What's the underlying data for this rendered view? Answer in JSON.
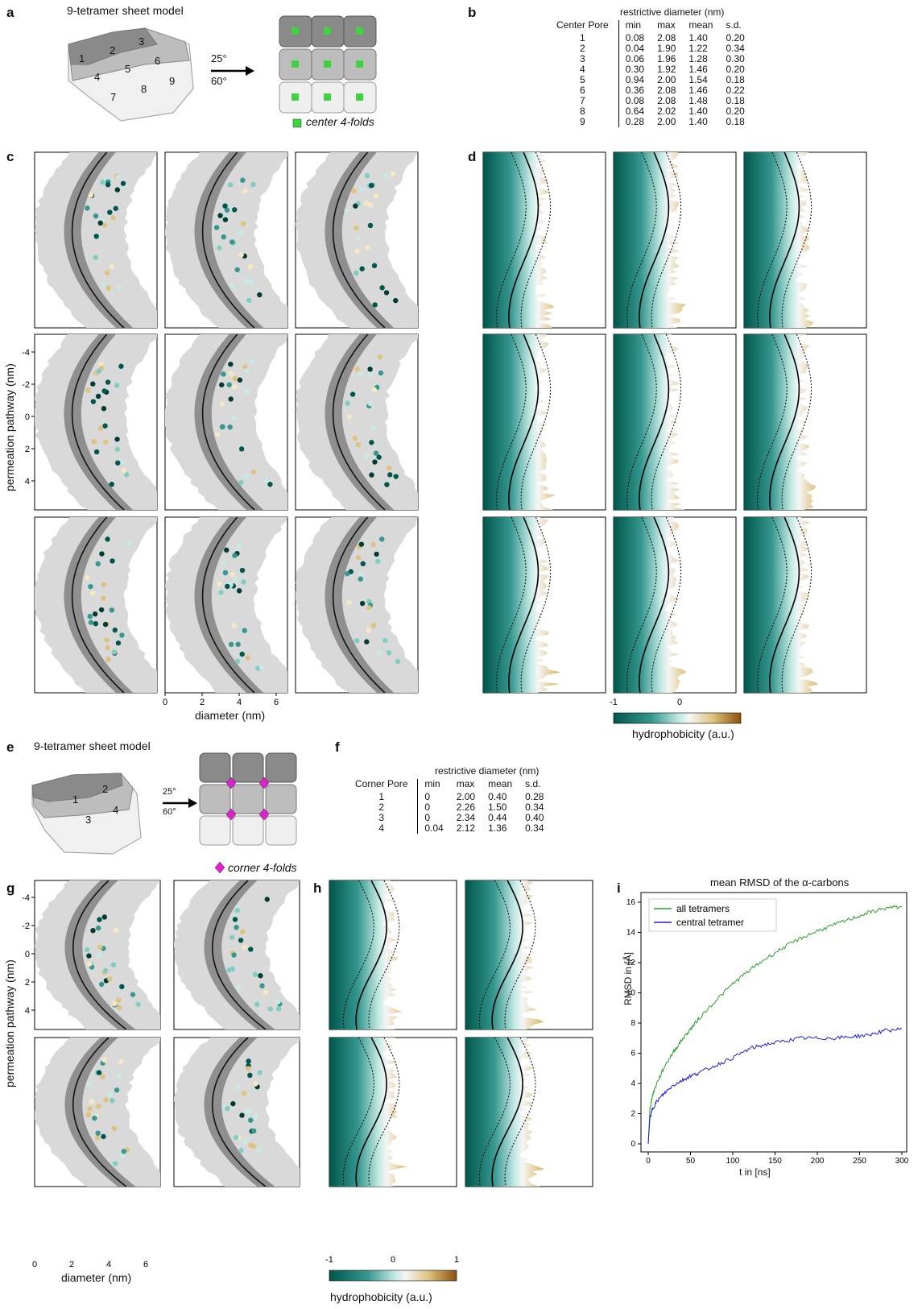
{
  "panels": {
    "a": "a",
    "b": "b",
    "c": "c",
    "d": "d",
    "e": "e",
    "f": "f",
    "g": "g",
    "h": "h",
    "i": "i"
  },
  "panel_a": {
    "title": "9-tetramer sheet model",
    "rot1": "25°",
    "rot2": "60°",
    "legend": "center 4-folds",
    "pore_labels": [
      "1",
      "2",
      "3",
      "4",
      "5",
      "6",
      "7",
      "8",
      "9"
    ],
    "legend_color": "#3fd43f"
  },
  "panel_e": {
    "title": "9-tetramer sheet model",
    "rot1": "25°",
    "rot2": "60°",
    "legend": "corner 4-folds",
    "pore_labels": [
      "1",
      "2",
      "3",
      "4"
    ],
    "legend_color": "#e020d0"
  },
  "table_b": {
    "title": "restrictive diameter (nm)",
    "headers": [
      "Center Pore",
      "min",
      "max",
      "mean",
      "s.d."
    ],
    "rows": [
      [
        "1",
        "0.08",
        "2.08",
        "1.40",
        "0.20"
      ],
      [
        "2",
        "0.04",
        "1.90",
        "1.22",
        "0.34"
      ],
      [
        "3",
        "0.06",
        "1.96",
        "1.28",
        "0.30"
      ],
      [
        "4",
        "0.30",
        "1.92",
        "1.46",
        "0.20"
      ],
      [
        "5",
        "0.94",
        "2.00",
        "1.54",
        "0.18"
      ],
      [
        "6",
        "0.36",
        "2.08",
        "1.46",
        "0.22"
      ],
      [
        "7",
        "0.08",
        "2.08",
        "1.48",
        "0.18"
      ],
      [
        "8",
        "0.64",
        "2.02",
        "1.40",
        "0.20"
      ],
      [
        "9",
        "0.28",
        "2.00",
        "1.40",
        "0.18"
      ]
    ]
  },
  "table_f": {
    "title": "restrictive diameter (nm)",
    "headers": [
      "Corner Pore",
      "min",
      "max",
      "mean",
      "s.d."
    ],
    "rows": [
      [
        "1",
        "0",
        "2.00",
        "0.40",
        "0.28"
      ],
      [
        "2",
        "0",
        "2.26",
        "1.50",
        "0.34"
      ],
      [
        "3",
        "0",
        "2.34",
        "0.44",
        "0.40"
      ],
      [
        "4",
        "0.04",
        "2.12",
        "1.36",
        "0.34"
      ]
    ]
  },
  "axes": {
    "c_ylabel": "permeation pathway (nm)",
    "c_xlabel": "diameter (nm)",
    "c_yticks": [
      "-4",
      "-2",
      "0",
      "2",
      "4"
    ],
    "c_xticks": [
      "0",
      "2",
      "4",
      "6"
    ],
    "d_xticks": [
      "-1",
      "0"
    ],
    "h_xticks": [
      "-1",
      "0",
      "1"
    ],
    "colorbar_label": "hydrophobicity (a.u.)",
    "g_ylabel": "permeation pathway (nm)",
    "g_xlabel": "diameter (nm)",
    "g_yticks": [
      "-4",
      "-2",
      "0",
      "2",
      "4"
    ],
    "g_xticks": [
      "0",
      "2",
      "4",
      "6"
    ]
  },
  "colors": {
    "teal_dark": "#01564c",
    "teal": "#35978f",
    "teal_light": "#c7eae5",
    "tan": "#dfc27d",
    "brown": "#8c510a",
    "band_light": "#d9d9d9",
    "band_dark": "#8f8f8f",
    "all_tetramers": "#2ca02c",
    "central_tetramer": "#1f1fe6"
  },
  "chart_data": {
    "type": "line",
    "title": "mean RMSD of the α-carbons",
    "xlabel": "t in [ns]",
    "ylabel": "RMSD in [Å]",
    "xlim": [
      0,
      300
    ],
    "ylim": [
      0,
      16
    ],
    "xticks": [
      "0",
      "50",
      "100",
      "150",
      "200",
      "250",
      "300"
    ],
    "yticks": [
      "0",
      "2",
      "4",
      "6",
      "8",
      "10",
      "12",
      "14",
      "16"
    ],
    "legend_position": "top-left",
    "grid": false,
    "series": [
      {
        "name": "all tetramers",
        "color": "#2ca02c",
        "x": [
          0,
          2,
          5,
          10,
          20,
          30,
          40,
          50,
          60,
          80,
          100,
          120,
          140,
          160,
          180,
          200,
          220,
          240,
          260,
          280,
          300
        ],
        "y": [
          0,
          2.3,
          3.2,
          4.0,
          5.2,
          6.1,
          6.9,
          7.6,
          8.3,
          9.5,
          10.6,
          11.5,
          12.3,
          13.0,
          13.6,
          14.1,
          14.5,
          14.9,
          15.3,
          15.6,
          15.7
        ]
      },
      {
        "name": "central tetramer",
        "color": "#1f1fe6",
        "x": [
          0,
          2,
          5,
          10,
          20,
          30,
          40,
          50,
          60,
          80,
          100,
          120,
          140,
          160,
          180,
          200,
          220,
          240,
          260,
          280,
          300
        ],
        "y": [
          0,
          1.7,
          2.3,
          2.8,
          3.4,
          3.9,
          4.2,
          4.5,
          4.7,
          5.2,
          5.7,
          6.3,
          6.6,
          6.8,
          7.0,
          7.0,
          7.0,
          7.1,
          7.2,
          7.5,
          7.6
        ]
      }
    ]
  }
}
